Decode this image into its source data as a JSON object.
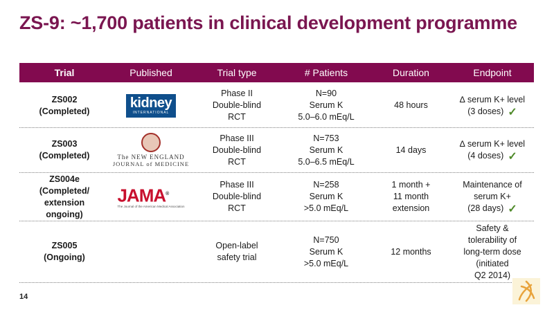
{
  "title": "ZS-9: ~1,700 patients in clinical development programme",
  "header": {
    "trial": "Trial",
    "published": "Published",
    "trial_type": "Trial type",
    "patients": "# Patients",
    "duration": "Duration",
    "endpoint": "Endpoint"
  },
  "rows": [
    {
      "trial": [
        "ZS002",
        "(Completed)"
      ],
      "logo": {
        "name": "kidney",
        "main": "kidney",
        "sub": "INTERNATIONAL"
      },
      "type": [
        "Phase II",
        "Double-blind",
        "RCT"
      ],
      "patients": [
        "N=90",
        "Serum K",
        "5.0–6.0 mEq/L"
      ],
      "duration": [
        "48 hours"
      ],
      "endpoint": [
        "∆ serum K+ level",
        "(3 doses)"
      ],
      "check": "✓"
    },
    {
      "trial": [
        "ZS003",
        "(Completed)"
      ],
      "logo": {
        "name": "nejm",
        "line1": "The NEW ENGLAND",
        "line2": "JOURNAL of MEDICINE"
      },
      "type": [
        "Phase III",
        "Double-blind",
        "RCT"
      ],
      "patients": [
        "N=753",
        "Serum K",
        "5.0–6.5 mEq/L"
      ],
      "duration": [
        "14 days"
      ],
      "endpoint": [
        "∆ serum K+ level",
        "(4 doses)"
      ],
      "check": "✓"
    },
    {
      "trial": [
        "ZS004e",
        "(Completed/",
        "extension",
        "ongoing)"
      ],
      "logo": {
        "name": "jama",
        "main": "JAMA",
        "sub": "The Journal of the American Medical Association"
      },
      "type": [
        "Phase III",
        "Double-blind",
        "RCT"
      ],
      "patients": [
        "N=258",
        "Serum K",
        ">5.0 mEq/L"
      ],
      "duration": [
        "1 month +",
        "11 month",
        "extension"
      ],
      "endpoint": [
        "Maintenance of",
        "serum K+",
        "(28 days)"
      ],
      "check": "✓"
    },
    {
      "trial": [
        "ZS005",
        "(Ongoing)"
      ],
      "type": [
        "Open-label",
        "safety trial"
      ],
      "patients": [
        "N=750",
        "Serum K",
        ">5.0 mEq/L"
      ],
      "duration": [
        "12 months"
      ],
      "endpoint": [
        "Safety &",
        "tolerability of",
        "long-term dose",
        "(initiated",
        "Q2 2014)"
      ]
    }
  ],
  "page_number": "14",
  "colors": {
    "accent": "#820a4f",
    "title": "#7a1650",
    "check": "#4f8a2a"
  }
}
